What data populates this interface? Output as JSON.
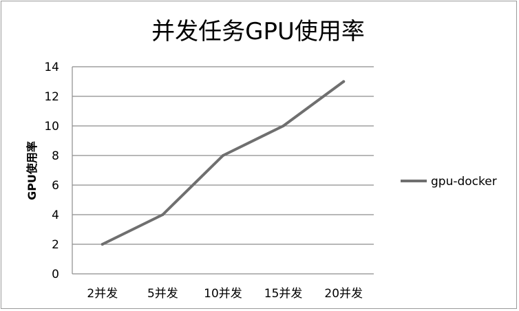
{
  "chart_data": {
    "type": "line",
    "title": "并发任务GPU使用率",
    "xlabel": "",
    "ylabel": "GPU使用率",
    "categories": [
      "2并发",
      "5并发",
      "10并发",
      "15并发",
      "20并发"
    ],
    "series": [
      {
        "name": "gpu-docker",
        "values": [
          2,
          4,
          8,
          10,
          13
        ],
        "color": "#6f6f6f"
      }
    ],
    "ylim": [
      0,
      14
    ],
    "yticks": [
      "0",
      "2",
      "4",
      "6",
      "8",
      "10",
      "12",
      "14"
    ],
    "grid": true,
    "legend": "right"
  }
}
